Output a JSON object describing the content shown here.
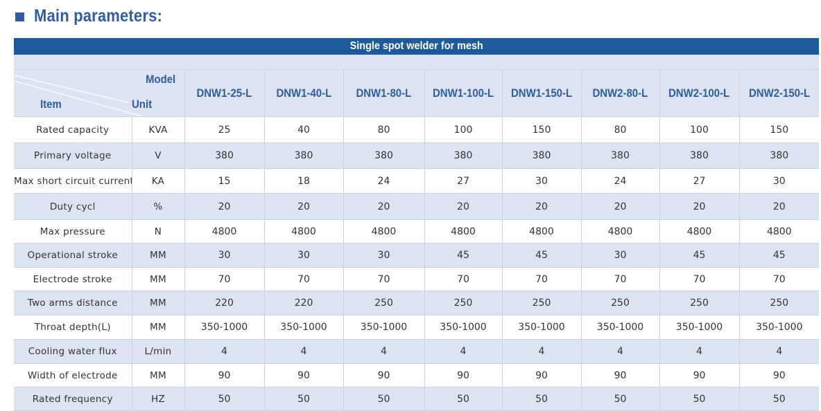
{
  "heading": "Main parameters:",
  "table": {
    "banner": "Single spot welder for mesh",
    "corner": {
      "model_label": "Model",
      "item_label": "Item",
      "unit_label": "Unit"
    },
    "models": [
      "DNW1-25-L",
      "DNW1-40-L",
      "DNW1-80-L",
      "DNW1-100-L",
      "DNW1-150-L",
      "DNW2-80-L",
      "DNW2-100-L",
      "DNW2-150-L"
    ],
    "rows": [
      {
        "item": "Rated capacity",
        "unit": "KVA",
        "values": [
          "25",
          "40",
          "80",
          "100",
          "150",
          "80",
          "100",
          "150"
        ]
      },
      {
        "item": "Primary voltage",
        "unit": "V",
        "values": [
          "380",
          "380",
          "380",
          "380",
          "380",
          "380",
          "380",
          "380"
        ]
      },
      {
        "item": "Max short circuit current",
        "unit": "KA",
        "values": [
          "15",
          "18",
          "24",
          "27",
          "30",
          "24",
          "27",
          "30"
        ]
      },
      {
        "item": "Duty cycl",
        "unit": "%",
        "values": [
          "20",
          "20",
          "20",
          "20",
          "20",
          "20",
          "20",
          "20"
        ]
      },
      {
        "item": "Max pressure",
        "unit": "N",
        "values": [
          "4800",
          "4800",
          "4800",
          "4800",
          "4800",
          "4800",
          "4800",
          "4800"
        ]
      },
      {
        "item": "Operational stroke",
        "unit": "MM",
        "values": [
          "30",
          "30",
          "30",
          "45",
          "45",
          "30",
          "45",
          "45"
        ]
      },
      {
        "item": "Electrode stroke",
        "unit": "MM",
        "values": [
          "70",
          "70",
          "70",
          "70",
          "70",
          "70",
          "70",
          "70"
        ]
      },
      {
        "item": "Two arms distance",
        "unit": "MM",
        "values": [
          "220",
          "220",
          "250",
          "250",
          "250",
          "250",
          "250",
          "250"
        ]
      },
      {
        "item": "Throat depth(L)",
        "unit": "MM",
        "values": [
          "350-1000",
          "350-1000",
          "350-1000",
          "350-1000",
          "350-1000",
          "350-1000",
          "350-1000",
          "350-1000"
        ]
      },
      {
        "item": "Cooling water flux",
        "unit": "L/min",
        "values": [
          "4",
          "4",
          "4",
          "4",
          "4",
          "4",
          "4",
          "4"
        ]
      },
      {
        "item": "Width of electrode",
        "unit": "MM",
        "values": [
          "90",
          "90",
          "90",
          "90",
          "90",
          "90",
          "90",
          "90"
        ]
      },
      {
        "item": "Rated frequency",
        "unit": "HZ",
        "values": [
          "50",
          "50",
          "50",
          "50",
          "50",
          "50",
          "50",
          "50"
        ]
      }
    ]
  },
  "colors": {
    "accent": "#2f5d9f",
    "banner": "#1f5a9c",
    "band": "#dbe4f0"
  }
}
